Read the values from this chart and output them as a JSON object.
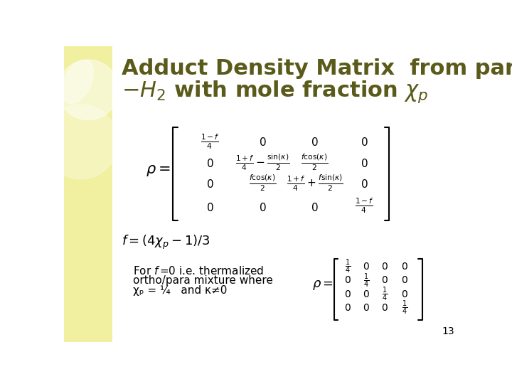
{
  "title_line1": "Adduct Density Matrix  from para",
  "title_color": "#5a5a1a",
  "bg_color": "#ffffff",
  "sidebar_color": "#f0f0a0",
  "page_number": "13"
}
